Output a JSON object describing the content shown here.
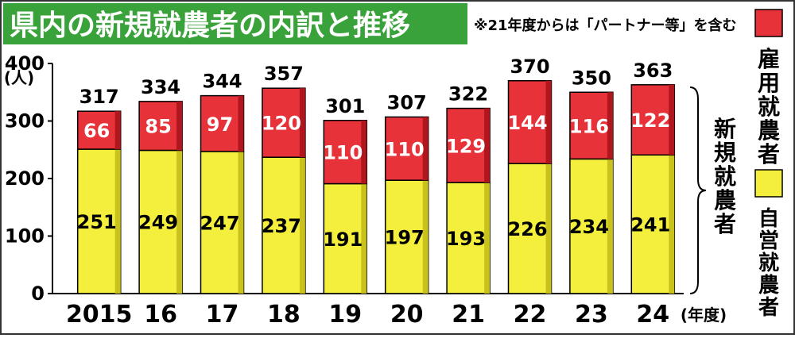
{
  "chart_data": {
    "type": "bar",
    "stacked": true,
    "title": "県内の新規就農者の内訳と推移",
    "note": "※21年度からは「パートナー等」を含む",
    "ylabel": "(人)",
    "ylim": [
      0,
      400
    ],
    "yticks": [
      "0",
      "100",
      "200",
      "300",
      "400"
    ],
    "categories": [
      "2015",
      "16",
      "17",
      "18",
      "19",
      "20",
      "21",
      "22",
      "23",
      "24"
    ],
    "x_unit": "(年度)",
    "series": [
      {
        "name": "自営就農者",
        "color": "#f4ef3c",
        "values": [
          251,
          249,
          247,
          237,
          191,
          197,
          193,
          226,
          234,
          241
        ]
      },
      {
        "name": "雇用就農者",
        "color": "#e8323a",
        "values": [
          66,
          85,
          97,
          120,
          110,
          110,
          129,
          144,
          116,
          122
        ]
      }
    ],
    "totals": [
      317,
      334,
      344,
      357,
      301,
      307,
      322,
      370,
      350,
      363
    ],
    "bracket_label": "新規就農者",
    "legend_position": "right",
    "grid": false
  },
  "colors": {
    "title_bg": "#3aa23a",
    "title_fg": "#ffffff",
    "plot_bg": "#ffffff"
  }
}
